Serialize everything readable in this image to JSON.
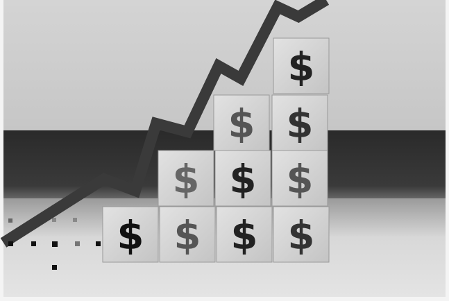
{
  "blocks": [
    {
      "label": "$"
    },
    {
      "label": "$"
    },
    {
      "label": "$"
    },
    {
      "label": "$"
    },
    {
      "label": "$"
    },
    {
      "label": "$"
    },
    {
      "label": "$"
    },
    {
      "label": "$"
    },
    {
      "label": "$"
    },
    {
      "label": "$"
    }
  ]
}
